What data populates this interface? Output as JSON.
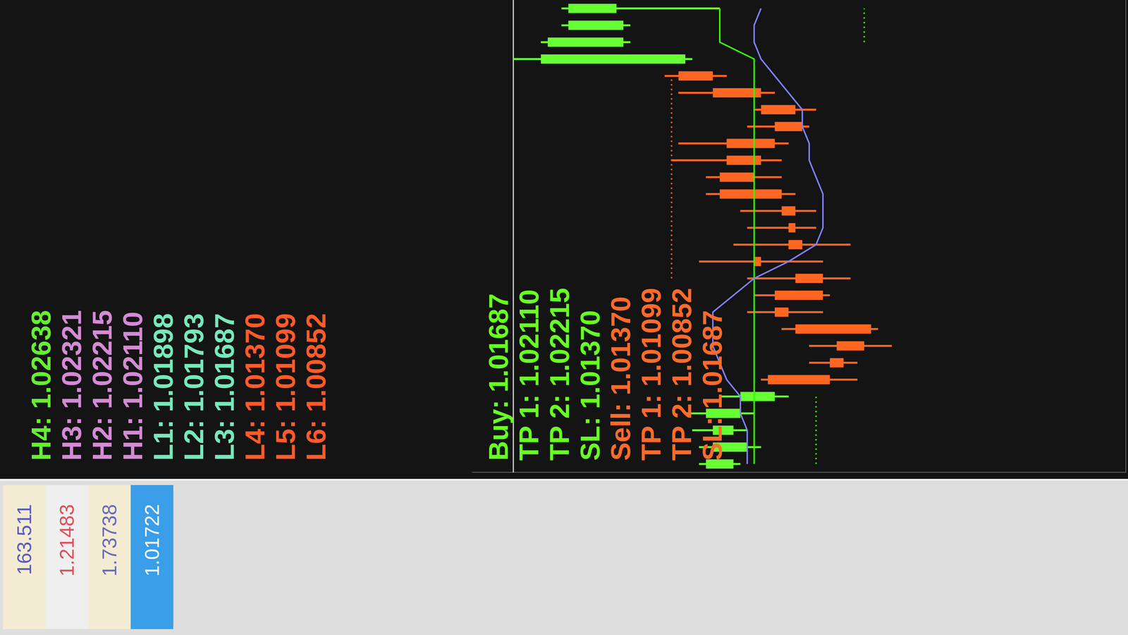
{
  "chart_data": {
    "type": "candlestick",
    "categories": [
      null,
      null,
      null,
      null,
      null,
      null,
      null,
      null,
      null,
      null,
      null,
      null,
      null,
      null,
      null,
      null,
      null,
      null,
      null,
      null,
      null,
      null,
      null,
      null,
      null,
      null,
      null,
      null
    ],
    "open": [
      1.0169,
      1.01688,
      1.0169,
      1.01689,
      1.01684,
      1.01685,
      1.01676,
      1.01675,
      1.0167,
      1.01682,
      1.01684,
      1.01677,
      1.01687,
      1.01682,
      1.01682,
      1.01681,
      1.01683,
      1.01687,
      1.01686,
      1.01691,
      1.01684,
      1.01681,
      1.01686,
      1.01693,
      1.01697,
      1.01706,
      1.01706,
      1.01707
    ],
    "high": [
      1.01695,
      1.01695,
      1.01696,
      1.01697,
      1.01692,
      1.01686,
      1.01679,
      1.01679,
      1.01683,
      1.01688,
      1.01687,
      1.01688,
      1.01695,
      1.0169,
      1.01688,
      1.01689,
      1.01694,
      1.01694,
      1.01699,
      1.01698,
      1.01688,
      1.01687,
      1.01698,
      1.017,
      1.01722,
      1.01718,
      1.01715,
      1.01715
    ],
    "low": [
      1.01689,
      1.01686,
      1.01688,
      1.01687,
      1.01682,
      1.01672,
      1.01672,
      1.01667,
      1.01669,
      1.01677,
      1.01676,
      1.01673,
      1.01677,
      1.01673,
      1.01678,
      1.01678,
      1.01681,
      1.01683,
      1.01683,
      1.01682,
      1.01679,
      1.01678,
      1.01684,
      1.01691,
      1.01696,
      1.01705,
      1.01705,
      1.01692
    ],
    "close": [
      1.01694,
      1.01693,
      1.01693,
      1.01694,
      1.01689,
      1.01676,
      1.01674,
      1.01671,
      1.01681,
      1.01684,
      1.01677,
      1.01681,
      1.01686,
      1.0168,
      1.01681,
      1.01683,
      1.01692,
      1.01692,
      1.01691,
      1.01684,
      1.0168,
      1.01686,
      1.01693,
      1.01698,
      1.01718,
      1.01717,
      1.01714,
      1.01714
    ],
    "colors": [
      "#66ff33",
      "#66ff33",
      "#66ff33",
      "#66ff33",
      "#66ff33",
      "#ff6622",
      "#ff6622",
      "#ff6622",
      "#ff6622",
      "#ff6622",
      "#ff6622",
      "#ff6622",
      "#ff6622",
      "#ff6622",
      "#ff6622",
      "#ff6622",
      "#ff6622",
      "#ff6622",
      "#ff6622",
      "#ff6622",
      "#ff6622",
      "#ff6622",
      "#ff6622",
      "#ff6622",
      "#66ff33",
      "#66ff33",
      "#66ff33",
      "#66ff33"
    ],
    "lines": [
      {
        "color": "#8080ff",
        "line_style": "solid",
        "values": [
          1.01688,
          1.01688,
          1.01688,
          1.01689,
          1.01689,
          1.01691,
          1.01692,
          1.01693,
          1.01693,
          1.01693,
          1.0169,
          1.01687,
          1.01682,
          1.01678,
          1.01677,
          1.01677,
          1.01677,
          1.01678,
          1.01679,
          1.01679,
          1.0168,
          1.0168,
          1.01682,
          1.01684,
          1.01686,
          1.01687,
          1.01687,
          1.01686
        ]
      },
      {
        "color": "#33ff00",
        "line_style": "solid",
        "values": [
          1.01687,
          1.01687,
          1.01687,
          1.01687,
          1.01687,
          1.01687,
          1.01687,
          1.01687,
          1.01687,
          1.01687,
          1.01687,
          1.01687,
          1.01687,
          1.01687,
          1.01687,
          1.01687,
          1.01687,
          1.01687,
          1.01687,
          1.01687,
          1.01687,
          1.01687,
          1.01687,
          1.01687,
          1.01687,
          1.01692,
          1.01692,
          1.01692
        ]
      },
      {
        "color": "#ff6622",
        "line_style": "dotted",
        "values": [
          null,
          null,
          null,
          null,
          null,
          null,
          null,
          null,
          null,
          null,
          null,
          1.01699,
          1.01699,
          1.01699,
          1.01699,
          1.01699,
          1.01699,
          1.01699,
          1.01699,
          1.01699,
          1.01699,
          1.01699,
          1.01699,
          1.01699,
          null,
          null,
          null,
          null
        ]
      },
      {
        "color": "#33ff00",
        "line_style": "dotted",
        "values": [
          1.01678,
          1.01678,
          1.01678,
          1.01678,
          1.01678,
          null,
          null,
          null,
          null,
          null,
          null,
          null,
          null,
          null,
          null,
          null,
          null,
          null,
          null,
          null,
          null,
          null,
          null,
          null,
          null,
          1.01671,
          1.01671,
          1.01671
        ]
      }
    ],
    "bid_line": 1.01722,
    "ylim": [
      1.01633,
      1.01728
    ],
    "grid": false,
    "tick_labels": false
  },
  "pivot_levels": [
    {
      "text": "H4: 1.02638",
      "color": "#66ee33"
    },
    {
      "text": "H3: 1.02321",
      "color": "#d58ad5"
    },
    {
      "text": "H2: 1.02215",
      "color": "#d58ad5"
    },
    {
      "text": "H1: 1.02110",
      "color": "#d58ad5"
    },
    {
      "text": "L1: 1.01898",
      "color": "#77e8bb"
    },
    {
      "text": "L2: 1.01793",
      "color": "#77e8bb"
    },
    {
      "text": "L3: 1.01687",
      "color": "#77e8bb"
    },
    {
      "text": "L4: 1.01370",
      "color": "#ff5a2a"
    },
    {
      "text": "L5: 1.01099",
      "color": "#ff5a2a"
    },
    {
      "text": "L6: 1.00852",
      "color": "#ff5a2a"
    }
  ],
  "signals": [
    {
      "text": "Buy: 1.01687",
      "color": "#66ff22"
    },
    {
      "text": "TP 1: 1.02110",
      "color": "#66ff22"
    },
    {
      "text": "TP 2: 1.02215",
      "color": "#66ff22"
    },
    {
      "text": "SL: 1.01370",
      "color": "#66ff22"
    },
    {
      "text": "Sell: 1.01370",
      "color": "#ff6a2a"
    },
    {
      "text": "TP 1: 1.01099",
      "color": "#ff6a2a"
    },
    {
      "text": "TP 2: 1.00852",
      "color": "#ff6a2a"
    },
    {
      "text": "SL: 1.01687",
      "color": "#ff6a2a"
    }
  ],
  "market_watch": [
    {
      "value": 163.511,
      "color": "#5a5ac8",
      "background": "#f3ecd2"
    },
    {
      "value": 1.21483,
      "color": "#e0505a",
      "background": "#efefef"
    },
    {
      "value": 1.73738,
      "color": "#6a6ac0",
      "background": "#f3ecd2"
    },
    {
      "value": 1.01722,
      "color": "#ffffff",
      "background": "#3a9ee8"
    }
  ]
}
